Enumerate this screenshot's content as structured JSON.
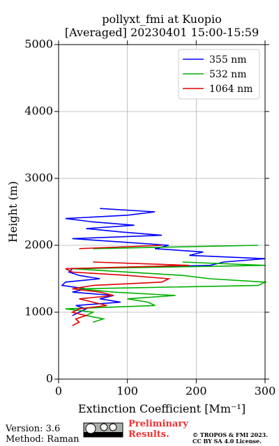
{
  "chart_data": {
    "type": "profile",
    "title": "pollyxt_fmi at Kuopio",
    "subtitle": "[Averaged] 20230401 15:00-15:59",
    "xlabel": "Extinction Coefficient [Mm⁻¹]",
    "ylabel": "Height (m)",
    "xlim": [
      0,
      300
    ],
    "xticks": [
      0,
      100,
      200,
      300
    ],
    "ylim": [
      0,
      5000
    ],
    "yticks": [
      0,
      1000,
      2000,
      3000,
      4000,
      5000
    ],
    "grid": true,
    "legend": "upper right",
    "heights": [
      800,
      850,
      900,
      950,
      1000,
      1050,
      1100,
      1150,
      1200,
      1250,
      1300,
      1350,
      1400,
      1450,
      1500,
      1550,
      1600,
      1650,
      1700,
      1750,
      1800,
      1850,
      1900,
      1950,
      2000,
      2050,
      2100,
      2150,
      2200,
      2250,
      2300,
      2350,
      2400,
      2450,
      2500,
      2550
    ],
    "series": [
      {
        "name": "355 nm",
        "color": "#0000ff",
        "values": [
          null,
          null,
          null,
          20,
          30,
          40,
          25,
          90,
          60,
          80,
          20,
          40,
          5,
          10,
          60,
          30,
          15,
          20,
          220,
          240,
          300,
          190,
          210,
          140,
          160,
          90,
          20,
          150,
          90,
          40,
          110,
          50,
          10,
          100,
          140,
          60
        ]
      },
      {
        "name": "532 nm",
        "color": "#00b000",
        "values": [
          null,
          50,
          65,
          40,
          50,
          10,
          140,
          130,
          100,
          170,
          80,
          30,
          290,
          300,
          220,
          180,
          100,
          20,
          300,
          180,
          null,
          null,
          null,
          50,
          290,
          null,
          null,
          null,
          null,
          null,
          null,
          null,
          null,
          null,
          null,
          null
        ]
      },
      {
        "name": "1064 nm",
        "color": "#dd0000",
        "values": [
          20,
          30,
          25,
          40,
          20,
          30,
          70,
          50,
          30,
          80,
          60,
          20,
          50,
          150,
          160,
          100,
          20,
          10,
          190,
          50,
          null,
          null,
          null,
          30,
          150,
          null,
          null,
          null,
          null,
          null,
          null,
          null,
          null,
          null,
          null,
          null
        ]
      }
    ],
    "version": "Version: 3.6",
    "method": "Method: Raman",
    "notice": "Preliminary Results.",
    "copyright": "© TROPOS & FMI 2023.",
    "license": "CC BY SA 4.0 License."
  }
}
